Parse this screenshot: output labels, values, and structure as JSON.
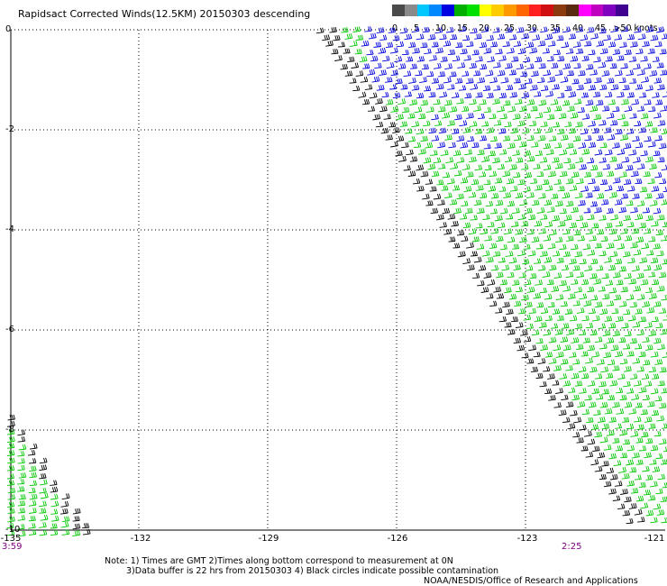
{
  "title": "Rapidsact Corrected Winds(12.5KM) 20150303 descending",
  "colorbar": {
    "swatches": [
      "#4a4a4a",
      "#8a8a8a",
      "#00c8ff",
      "#0088ff",
      "#0000e0",
      "#00b000",
      "#00e000",
      "#ffff00",
      "#ffcc00",
      "#ff9900",
      "#ff6600",
      "#ff2020",
      "#d01010",
      "#8b3a10",
      "#5a2a10",
      "#ff00ff",
      "#c000c0",
      "#8000c0",
      "#400090"
    ],
    "labels": [
      "0",
      "5",
      "10",
      "15",
      "20",
      "25",
      "30",
      "35",
      "40",
      "45",
      ">50 knots"
    ]
  },
  "axes": {
    "x_ticks": [
      "-135",
      "-132",
      "-129",
      "-126",
      "-123",
      "-121"
    ],
    "y_ticks": [
      "0",
      "-2",
      "-4",
      "-6",
      "-8",
      "-10"
    ]
  },
  "times": {
    "left": "3:59",
    "right": "2:25"
  },
  "notes": [
    "Note: 1) Times are GMT 2)Times along bottom correspond to measurement at 0N",
    "3)Data buffer is 22 hrs from 20150303 4) Black circles indicate possible contamination"
  ],
  "credit": "NOAA/NESDIS/Office of Research and Applications",
  "legend_colors": {
    "swath_edge": "#000000",
    "low_speed": "#00c800",
    "high_speed": "#0000dd"
  }
}
